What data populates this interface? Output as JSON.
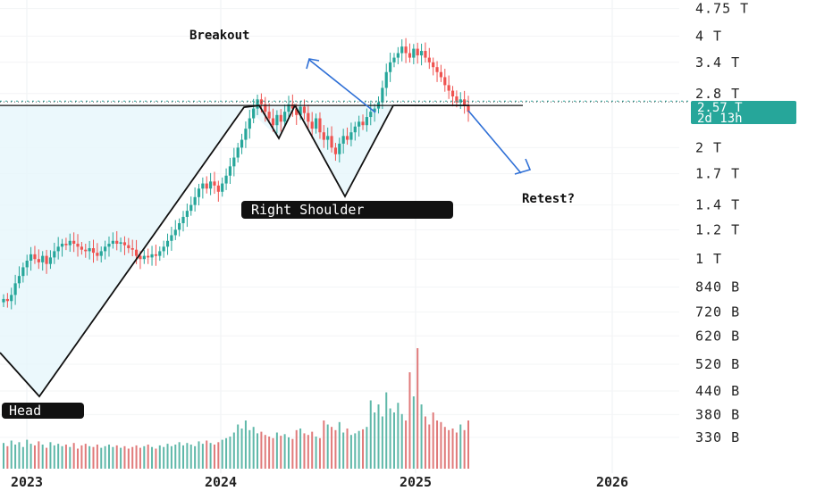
{
  "chart_data": {
    "type": "candlestick",
    "y_scale": "log",
    "ylim": [
      300000000000,
      4900000000000
    ],
    "y_ticks": [
      {
        "label": "4.75 T",
        "value": 4750000000000
      },
      {
        "label": "4 T",
        "value": 4000000000000
      },
      {
        "label": "3.4 T",
        "value": 3400000000000
      },
      {
        "label": "2.8 T",
        "value": 2800000000000
      },
      {
        "label": "2 T",
        "value": 2000000000000
      },
      {
        "label": "1.7 T",
        "value": 1700000000000
      },
      {
        "label": "1.4 T",
        "value": 1400000000000
      },
      {
        "label": "1.2 T",
        "value": 1200000000000
      },
      {
        "label": "1 T",
        "value": 1000000000000
      },
      {
        "label": "840 B",
        "value": 840000000000
      },
      {
        "label": "720 B",
        "value": 720000000000
      },
      {
        "label": "620 B",
        "value": 620000000000
      },
      {
        "label": "520 B",
        "value": 520000000000
      },
      {
        "label": "440 B",
        "value": 440000000000
      },
      {
        "label": "380 B",
        "value": 380000000000
      },
      {
        "label": "330 B",
        "value": 330000000000
      }
    ],
    "x_ticks": [
      {
        "label": "2023",
        "date": "2023-01-01"
      },
      {
        "label": "2024",
        "date": "2024-01-01"
      },
      {
        "label": "2025",
        "date": "2025-01-01"
      },
      {
        "label": "2026",
        "date": "2026-01-01"
      }
    ],
    "current_price": {
      "label": "2.57 T",
      "value": 2570000000000,
      "countdown": "2d 13h"
    },
    "neckline_value": 2600000000000,
    "annotations": {
      "breakout": "Breakout",
      "head": "Head",
      "right_shoulder": "Right Shoulder",
      "retest": "Retest?"
    },
    "closes": [
      0.78,
      0.77,
      0.8,
      0.86,
      0.9,
      0.95,
      0.99,
      1.03,
      1.0,
      0.98,
      1.02,
      0.97,
      1.01,
      1.05,
      1.08,
      1.1,
      1.09,
      1.12,
      1.1,
      1.08,
      1.06,
      1.05,
      1.07,
      1.04,
      1.02,
      1.05,
      1.08,
      1.1,
      1.12,
      1.1,
      1.11,
      1.09,
      1.07,
      1.06,
      1.02,
      1.0,
      1.02,
      1.01,
      1.03,
      1.02,
      1.05,
      1.08,
      1.12,
      1.16,
      1.2,
      1.25,
      1.3,
      1.35,
      1.4,
      1.47,
      1.55,
      1.6,
      1.55,
      1.62,
      1.58,
      1.52,
      1.6,
      1.68,
      1.78,
      1.88,
      2.0,
      2.1,
      2.25,
      2.4,
      2.55,
      2.7,
      2.62,
      2.5,
      2.4,
      2.3,
      2.45,
      2.35,
      2.5,
      2.62,
      2.55,
      2.45,
      2.58,
      2.48,
      2.35,
      2.25,
      2.4,
      2.2,
      2.1,
      2.15,
      2.0,
      1.92,
      2.05,
      2.15,
      2.1,
      2.2,
      2.28,
      2.35,
      2.3,
      2.42,
      2.5,
      2.55,
      2.65,
      2.9,
      3.2,
      3.4,
      3.5,
      3.6,
      3.75,
      3.6,
      3.5,
      3.7,
      3.55,
      3.65,
      3.5,
      3.4,
      3.3,
      3.2,
      3.1,
      2.95,
      2.85,
      2.75,
      2.65,
      2.7,
      2.6,
      2.5
    ],
    "volumes": [
      32,
      28,
      35,
      30,
      33,
      27,
      36,
      31,
      29,
      34,
      30,
      26,
      33,
      29,
      31,
      28,
      30,
      27,
      32,
      25,
      29,
      31,
      28,
      27,
      30,
      26,
      28,
      30,
      27,
      29,
      26,
      28,
      25,
      27,
      29,
      26,
      28,
      30,
      27,
      25,
      29,
      27,
      31,
      28,
      30,
      33,
      29,
      32,
      30,
      28,
      34,
      31,
      35,
      32,
      30,
      33,
      36,
      38,
      40,
      45,
      55,
      50,
      60,
      48,
      52,
      44,
      46,
      42,
      40,
      38,
      45,
      41,
      43,
      39,
      37,
      48,
      50,
      44,
      42,
      46,
      40,
      38,
      60,
      55,
      52,
      48,
      58,
      45,
      50,
      42,
      44,
      47,
      49,
      52,
      85,
      70,
      80,
      65,
      95,
      75,
      70,
      82,
      68,
      60,
      120,
      90,
      150,
      80,
      65,
      55,
      70,
      60,
      58,
      52,
      48,
      50,
      45,
      55,
      48,
      60
    ]
  }
}
